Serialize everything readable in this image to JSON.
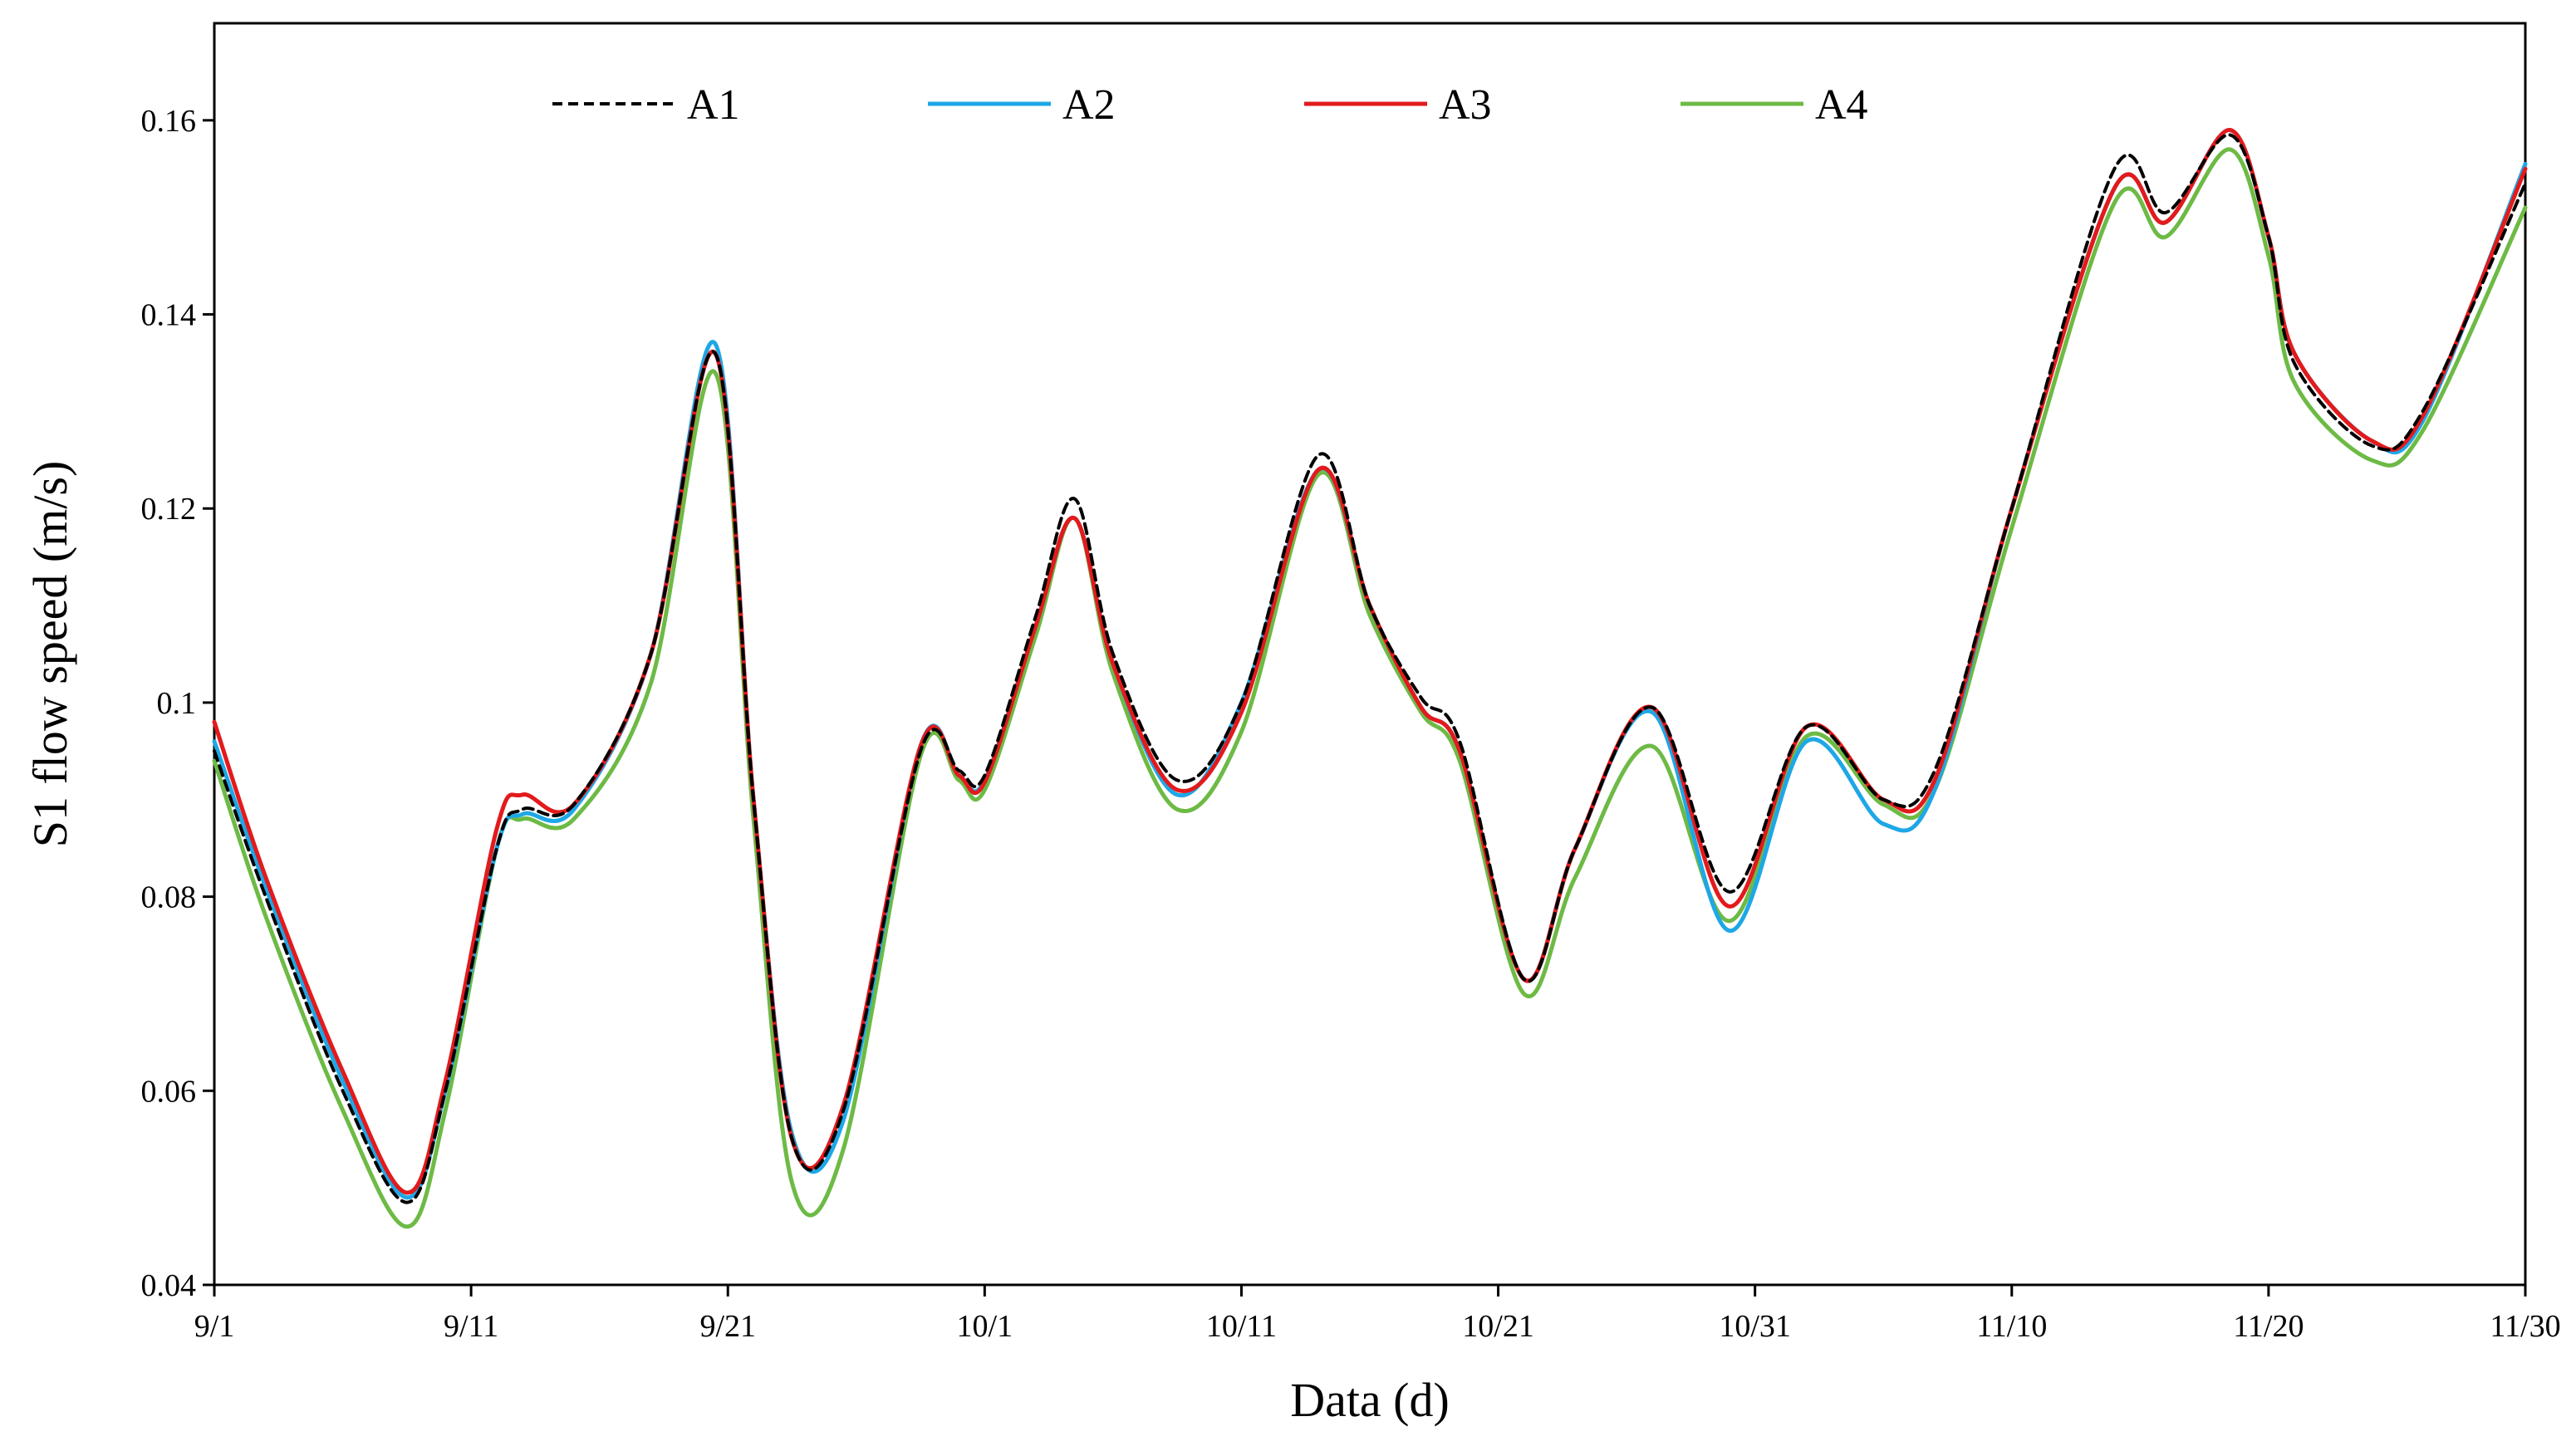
{
  "chart_data": {
    "type": "line",
    "xlabel": "Data (d)",
    "ylabel": "S1  flow speed (m/s)",
    "x_tick_labels": [
      "9/1",
      "9/11",
      "9/21",
      "10/1",
      "10/11",
      "10/21",
      "10/31",
      "11/10",
      "11/20",
      "11/30"
    ],
    "y_ticks": [
      0.04,
      0.06,
      0.08,
      0.1,
      0.12,
      0.14,
      0.16
    ],
    "y_tick_labels": [
      "0.04",
      "0.06",
      "0.08",
      "0.1",
      "0.12",
      "0.14",
      "0.16"
    ],
    "xlim": [
      0,
      90
    ],
    "ylim": [
      0.04,
      0.17
    ],
    "grid": false,
    "legend_position": "top",
    "x_unit_note": "day index where 0 = 9/1 and 90 = 11/30",
    "series": [
      {
        "name": "A1",
        "color": "#000000",
        "dash": true,
        "points": [
          [
            0,
            0.095
          ],
          [
            2,
            0.08
          ],
          [
            5,
            0.06
          ],
          [
            7.5,
            0.0485
          ],
          [
            9,
            0.06
          ],
          [
            11,
            0.085
          ],
          [
            12,
            0.089
          ],
          [
            14,
            0.0895
          ],
          [
            17,
            0.105
          ],
          [
            19.5,
            0.136
          ],
          [
            21,
            0.09
          ],
          [
            22.5,
            0.055
          ],
          [
            24.5,
            0.058
          ],
          [
            27.5,
            0.095
          ],
          [
            29,
            0.093
          ],
          [
            30,
            0.0925
          ],
          [
            32,
            0.109
          ],
          [
            33.5,
            0.121
          ],
          [
            35,
            0.105
          ],
          [
            37.5,
            0.092
          ],
          [
            40,
            0.1
          ],
          [
            43,
            0.1255
          ],
          [
            45,
            0.11
          ],
          [
            47,
            0.1005
          ],
          [
            48.5,
            0.096
          ],
          [
            51,
            0.0715
          ],
          [
            53,
            0.085
          ],
          [
            56,
            0.0995
          ],
          [
            59,
            0.0805
          ],
          [
            62,
            0.0975
          ],
          [
            65,
            0.09
          ],
          [
            67,
            0.093
          ],
          [
            70,
            0.12
          ],
          [
            74,
            0.155
          ],
          [
            76,
            0.1505
          ],
          [
            78.5,
            0.1585
          ],
          [
            80,
            0.148
          ],
          [
            81,
            0.135
          ],
          [
            84,
            0.1265
          ],
          [
            86,
            0.13
          ],
          [
            90,
            0.1535
          ]
        ]
      },
      {
        "name": "A2",
        "color": "#1ea7e6",
        "dash": false,
        "points": [
          [
            0,
            0.096
          ],
          [
            2,
            0.081
          ],
          [
            5,
            0.061
          ],
          [
            7.5,
            0.049
          ],
          [
            9,
            0.06
          ],
          [
            11,
            0.085
          ],
          [
            12,
            0.0885
          ],
          [
            14,
            0.089
          ],
          [
            17,
            0.105
          ],
          [
            19.5,
            0.137
          ],
          [
            21,
            0.09
          ],
          [
            22.5,
            0.0555
          ],
          [
            24.5,
            0.057
          ],
          [
            27.5,
            0.0955
          ],
          [
            29,
            0.0925
          ],
          [
            30,
            0.092
          ],
          [
            32,
            0.108
          ],
          [
            33.5,
            0.119
          ],
          [
            35,
            0.104
          ],
          [
            37.5,
            0.0905
          ],
          [
            40,
            0.1
          ],
          [
            43,
            0.124
          ],
          [
            45,
            0.11
          ],
          [
            47,
            0.0995
          ],
          [
            48.5,
            0.095
          ],
          [
            51,
            0.0715
          ],
          [
            53,
            0.085
          ],
          [
            56,
            0.099
          ],
          [
            59,
            0.0765
          ],
          [
            62,
            0.096
          ],
          [
            65,
            0.0875
          ],
          [
            67,
            0.091
          ],
          [
            70,
            0.12
          ],
          [
            74,
            0.153
          ],
          [
            76,
            0.1495
          ],
          [
            78.5,
            0.159
          ],
          [
            80,
            0.148
          ],
          [
            81,
            0.136
          ],
          [
            84,
            0.127
          ],
          [
            86,
            0.129
          ],
          [
            90,
            0.1555
          ]
        ]
      },
      {
        "name": "A3",
        "color": "#e31a1c",
        "dash": false,
        "points": [
          [
            0,
            0.098
          ],
          [
            2,
            0.082
          ],
          [
            5,
            0.062
          ],
          [
            7.5,
            0.0495
          ],
          [
            9,
            0.061
          ],
          [
            11,
            0.087
          ],
          [
            12,
            0.0905
          ],
          [
            14,
            0.0895
          ],
          [
            17,
            0.105
          ],
          [
            19.5,
            0.136
          ],
          [
            21,
            0.09
          ],
          [
            22.5,
            0.055
          ],
          [
            24.5,
            0.0585
          ],
          [
            27.5,
            0.0955
          ],
          [
            29,
            0.0925
          ],
          [
            30,
            0.0918
          ],
          [
            32,
            0.108
          ],
          [
            33.5,
            0.119
          ],
          [
            35,
            0.104
          ],
          [
            37.5,
            0.091
          ],
          [
            40,
            0.099
          ],
          [
            43,
            0.124
          ],
          [
            45,
            0.11
          ],
          [
            47,
            0.0995
          ],
          [
            48.5,
            0.095
          ],
          [
            51,
            0.0715
          ],
          [
            53,
            0.085
          ],
          [
            56,
            0.0995
          ],
          [
            59,
            0.079
          ],
          [
            62,
            0.0975
          ],
          [
            65,
            0.09
          ],
          [
            67,
            0.092
          ],
          [
            70,
            0.12
          ],
          [
            74,
            0.153
          ],
          [
            76,
            0.1495
          ],
          [
            78.5,
            0.159
          ],
          [
            80,
            0.148
          ],
          [
            81,
            0.136
          ],
          [
            84,
            0.127
          ],
          [
            86,
            0.1295
          ],
          [
            90,
            0.155
          ]
        ]
      },
      {
        "name": "A4",
        "color": "#6dba45",
        "dash": false,
        "points": [
          [
            0,
            0.094
          ],
          [
            2,
            0.078
          ],
          [
            5,
            0.058
          ],
          [
            7.5,
            0.046
          ],
          [
            9,
            0.058
          ],
          [
            11,
            0.085
          ],
          [
            12,
            0.088
          ],
          [
            14,
            0.088
          ],
          [
            17,
            0.102
          ],
          [
            19.5,
            0.134
          ],
          [
            21,
            0.088
          ],
          [
            22.5,
            0.0505
          ],
          [
            24.5,
            0.054
          ],
          [
            27.5,
            0.0945
          ],
          [
            29,
            0.092
          ],
          [
            30,
            0.091
          ],
          [
            32,
            0.107
          ],
          [
            33.5,
            0.119
          ],
          [
            35,
            0.103
          ],
          [
            37.5,
            0.089
          ],
          [
            40,
            0.097
          ],
          [
            43,
            0.1235
          ],
          [
            45,
            0.109
          ],
          [
            47,
            0.099
          ],
          [
            48.5,
            0.094
          ],
          [
            51,
            0.07
          ],
          [
            53,
            0.082
          ],
          [
            56,
            0.0955
          ],
          [
            59,
            0.0775
          ],
          [
            62,
            0.0965
          ],
          [
            65,
            0.0895
          ],
          [
            67,
            0.091
          ],
          [
            70,
            0.118
          ],
          [
            74,
            0.1515
          ],
          [
            76,
            0.148
          ],
          [
            78.5,
            0.157
          ],
          [
            80,
            0.146
          ],
          [
            81,
            0.133
          ],
          [
            84,
            0.125
          ],
          [
            86,
            0.128
          ],
          [
            90,
            0.151
          ]
        ]
      }
    ]
  }
}
